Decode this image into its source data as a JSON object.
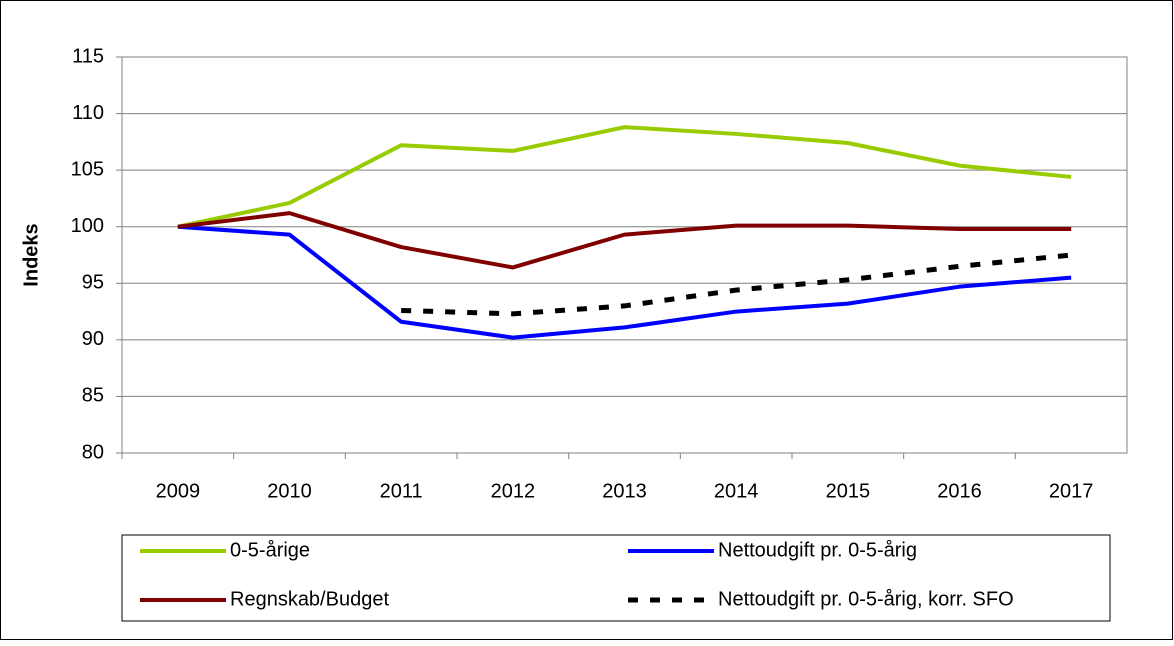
{
  "chart_data": {
    "type": "line",
    "y_label": "Indeks",
    "categories": [
      "2009",
      "2010",
      "2011",
      "2012",
      "2013",
      "2014",
      "2015",
      "2016",
      "2017"
    ],
    "series": [
      {
        "name": "0-5-årige",
        "color": "#99cc00",
        "dash": false,
        "values": [
          100,
          102.1,
          107.2,
          106.7,
          108.8,
          108.2,
          107.4,
          105.4,
          104.4
        ]
      },
      {
        "name": "Nettoudgift pr. 0-5-årig",
        "color": "#0000ff",
        "dash": false,
        "values": [
          100,
          99.3,
          91.6,
          90.2,
          91.1,
          92.5,
          93.2,
          94.7,
          95.5
        ]
      },
      {
        "name": "Regnskab/Budget",
        "color": "#800000",
        "dash": false,
        "values": [
          100,
          101.2,
          98.2,
          96.4,
          99.3,
          100.1,
          100.1,
          99.8,
          99.8
        ]
      },
      {
        "name": "Nettoudgift pr. 0-5-årig, korr. SFO",
        "color": "#000000",
        "dash": true,
        "values": [
          null,
          null,
          92.6,
          92.3,
          93.0,
          94.4,
          95.3,
          96.5,
          97.5
        ]
      }
    ],
    "ylim": [
      80,
      115
    ],
    "yticks": [
      80,
      85,
      90,
      95,
      100,
      105,
      110,
      115
    ],
    "grid": true
  }
}
